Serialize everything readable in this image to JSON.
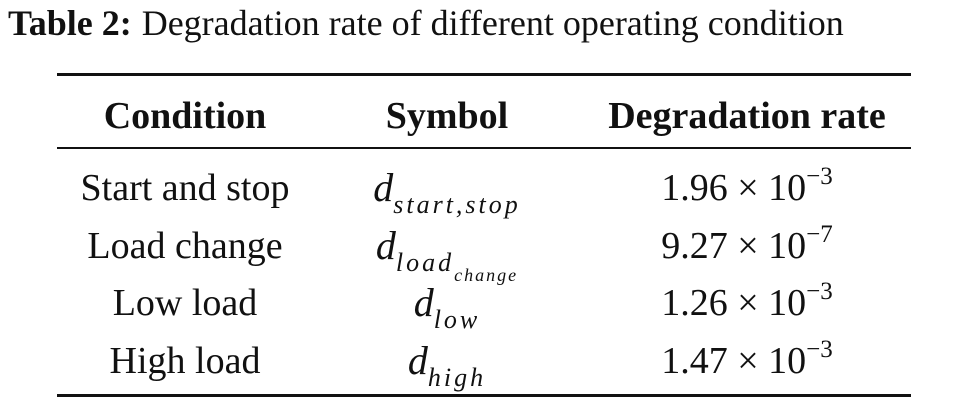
{
  "caption": {
    "label": "Table 2:",
    "text": "Degradation rate of different operating condition"
  },
  "table": {
    "headers": [
      "Condition",
      "Symbol",
      "Degradation rate"
    ],
    "rows": [
      {
        "condition": "Start and stop",
        "symbol": {
          "base": "d",
          "sub": "start,stop"
        },
        "rate": {
          "text": "1.96 × 10",
          "sup": "−3"
        }
      },
      {
        "condition": "Load change",
        "symbol": {
          "base": "d",
          "sub": "load",
          "subsub": "change"
        },
        "rate": {
          "text": "9.27 × 10",
          "sup": "−7"
        }
      },
      {
        "condition": "Low load",
        "symbol": {
          "base": "d",
          "sub": "low"
        },
        "rate": {
          "text": "1.26 × 10",
          "sup": "−3"
        }
      },
      {
        "condition": "High load",
        "symbol": {
          "base": "d",
          "sub": "high"
        },
        "rate": {
          "text": "1.47 × 10",
          "sup": "−3"
        }
      }
    ]
  }
}
